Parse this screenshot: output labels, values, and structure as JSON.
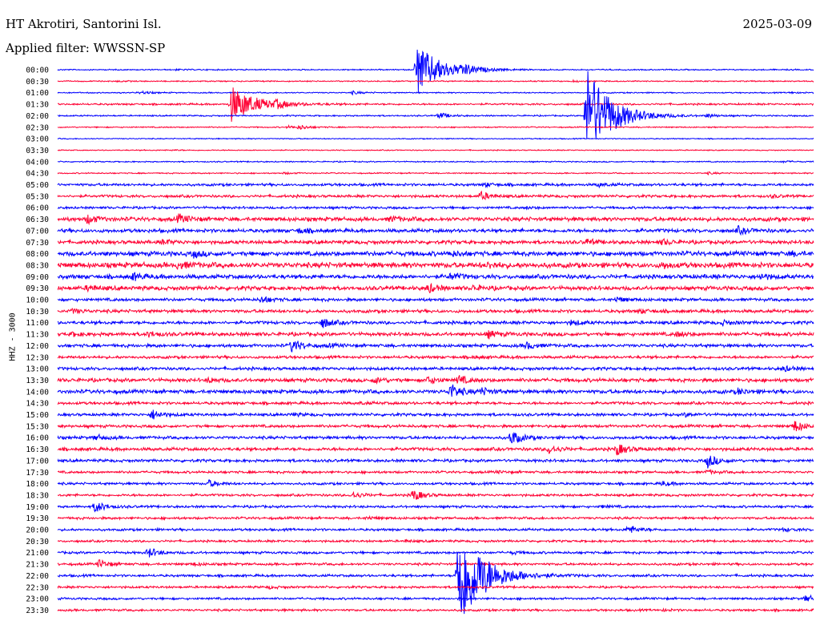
{
  "header": {
    "station": "HT Akrotiri, Santorini Isl.",
    "filter": "Applied filter: WWSSN-SP",
    "date": "2025-03-09"
  },
  "chart_data": {
    "type": "line",
    "title": "HT Akrotiri, Santorini Isl.",
    "subtitle": "Applied filter: WWSSN-SP",
    "ylabel": "HHZ - 3000",
    "xlabel": "",
    "date": "2025-03-09",
    "colors": [
      "#0000ff",
      "#ff0033"
    ],
    "rows": [
      {
        "label": "00:00",
        "events": [
          [
            0.158,
            0.6
          ],
          [
            0.475,
            32
          ],
          [
            0.536,
            5
          ]
        ],
        "noise": 0.6
      },
      {
        "label": "00:30",
        "events": [
          [
            0.08,
            0.6
          ],
          [
            0.682,
            0.8
          ]
        ],
        "noise": 0.6
      },
      {
        "label": "01:00",
        "events": [
          [
            0.11,
            1.8
          ],
          [
            0.39,
            1.8
          ],
          [
            0.97,
            0.8
          ]
        ],
        "noise": 0.6
      },
      {
        "label": "01:30",
        "events": [
          [
            0.23,
            22
          ],
          [
            0.29,
            3
          ]
        ],
        "noise": 0.9
      },
      {
        "label": "02:00",
        "events": [
          [
            0.7,
            60
          ],
          [
            0.505,
            3.5
          ],
          [
            0.86,
            2
          ]
        ],
        "noise": 0.7
      },
      {
        "label": "02:30",
        "events": [
          [
            0.305,
            1.5
          ],
          [
            0.32,
            2.5
          ]
        ],
        "noise": 0.6
      },
      {
        "label": "03:00",
        "events": [],
        "noise": 0.5
      },
      {
        "label": "03:30",
        "events": [
          [
            0.15,
            0.6
          ]
        ],
        "noise": 0.5
      },
      {
        "label": "04:00",
        "events": [
          [
            0.96,
            1
          ]
        ],
        "noise": 0.6
      },
      {
        "label": "04:30",
        "events": [
          [
            0.3,
            1
          ],
          [
            0.86,
            1.2
          ]
        ],
        "noise": 0.6
      },
      {
        "label": "05:00",
        "events": [
          [
            0.565,
            2.2
          ],
          [
            0.715,
            2
          ]
        ],
        "noise": 1.3
      },
      {
        "label": "05:30",
        "events": [
          [
            0.56,
            5
          ],
          [
            0.945,
            1.5
          ]
        ],
        "noise": 1.3
      },
      {
        "label": "06:00",
        "events": [
          [
            0.62,
            1
          ]
        ],
        "noise": 1.2
      },
      {
        "label": "06:30",
        "events": [
          [
            0.04,
            5
          ],
          [
            0.16,
            5
          ],
          [
            0.44,
            3
          ]
        ],
        "noise": 2
      },
      {
        "label": "07:00",
        "events": [
          [
            0.32,
            3
          ],
          [
            0.9,
            4
          ]
        ],
        "noise": 1.8
      },
      {
        "label": "07:30",
        "events": [
          [
            0.14,
            2.5
          ],
          [
            0.7,
            3
          ],
          [
            0.8,
            3
          ]
        ],
        "noise": 1.8
      },
      {
        "label": "08:00",
        "events": [
          [
            0.18,
            3.5
          ],
          [
            0.52,
            2.5
          ],
          [
            0.97,
            2
          ]
        ],
        "noise": 2.3
      },
      {
        "label": "08:30",
        "events": [
          [
            0.16,
            4
          ],
          [
            0.57,
            3
          ],
          [
            0.8,
            3
          ]
        ],
        "noise": 2.6
      },
      {
        "label": "09:00",
        "events": [
          [
            0.1,
            4
          ],
          [
            0.52,
            3.5
          ],
          [
            0.93,
            3
          ]
        ],
        "noise": 2.1
      },
      {
        "label": "09:30",
        "events": [
          [
            0.04,
            3
          ],
          [
            0.49,
            5
          ],
          [
            0.55,
            2.5
          ]
        ],
        "noise": 2
      },
      {
        "label": "10:00",
        "events": [
          [
            0.27,
            4
          ],
          [
            0.74,
            2.5
          ]
        ],
        "noise": 1.5
      },
      {
        "label": "10:30",
        "events": [
          [
            0.02,
            2.5
          ],
          [
            0.77,
            2.5
          ]
        ],
        "noise": 1.6
      },
      {
        "label": "11:00",
        "events": [
          [
            0.35,
            6
          ],
          [
            0.68,
            3
          ],
          [
            0.88,
            2.5
          ]
        ],
        "noise": 1.6
      },
      {
        "label": "11:30",
        "events": [
          [
            0.02,
            2
          ],
          [
            0.12,
            3
          ],
          [
            0.57,
            4
          ],
          [
            0.82,
            2.5
          ]
        ],
        "noise": 1.8
      },
      {
        "label": "12:00",
        "events": [
          [
            0.31,
            8
          ],
          [
            0.36,
            1.5
          ],
          [
            0.62,
            4
          ]
        ],
        "noise": 1.6
      },
      {
        "label": "12:30",
        "events": [
          [
            0.55,
            1.5
          ]
        ],
        "noise": 1.4
      },
      {
        "label": "13:00",
        "events": [
          [
            0.96,
            3
          ]
        ],
        "noise": 1.5
      },
      {
        "label": "13:30",
        "events": [
          [
            0.2,
            2.5
          ],
          [
            0.42,
            3
          ],
          [
            0.49,
            4
          ],
          [
            0.53,
            5
          ]
        ],
        "noise": 1.8
      },
      {
        "label": "14:00",
        "events": [
          [
            0.52,
            9
          ],
          [
            0.56,
            4
          ],
          [
            0.9,
            3
          ]
        ],
        "noise": 1.9
      },
      {
        "label": "14:30",
        "events": [
          [
            0.4,
            1
          ]
        ],
        "noise": 1.4
      },
      {
        "label": "15:00",
        "events": [
          [
            0.125,
            6
          ],
          [
            0.31,
            1.5
          ],
          [
            0.83,
            2
          ]
        ],
        "noise": 1.4
      },
      {
        "label": "15:30",
        "events": [
          [
            0.975,
            7
          ]
        ],
        "noise": 1.4
      },
      {
        "label": "16:00",
        "events": [
          [
            0.05,
            3
          ],
          [
            0.6,
            9
          ]
        ],
        "noise": 1.5
      },
      {
        "label": "16:30",
        "events": [
          [
            0.65,
            5
          ],
          [
            0.74,
            7
          ]
        ],
        "noise": 1.6
      },
      {
        "label": "17:00",
        "events": [
          [
            0.86,
            8
          ]
        ],
        "noise": 1.4
      },
      {
        "label": "17:30",
        "events": [
          [
            0.58,
            1
          ],
          [
            0.86,
            2
          ]
        ],
        "noise": 1.2
      },
      {
        "label": "18:00",
        "events": [
          [
            0.2,
            4
          ],
          [
            0.8,
            2.5
          ]
        ],
        "noise": 1.2
      },
      {
        "label": "18:30",
        "events": [
          [
            0.39,
            4
          ],
          [
            0.47,
            7
          ]
        ],
        "noise": 1.2
      },
      {
        "label": "19:00",
        "events": [
          [
            0.05,
            7
          ],
          [
            0.72,
            1.5
          ]
        ],
        "noise": 1.2
      },
      {
        "label": "19:30",
        "events": [
          [
            0.41,
            1.5
          ]
        ],
        "noise": 1.2
      },
      {
        "label": "20:00",
        "events": [
          [
            0.755,
            5
          ],
          [
            0.96,
            2
          ]
        ],
        "noise": 1.2
      },
      {
        "label": "20:30",
        "events": [
          [
            0.46,
            1.2
          ]
        ],
        "noise": 1.1
      },
      {
        "label": "21:00",
        "events": [
          [
            0.12,
            6
          ],
          [
            0.6,
            1.5
          ]
        ],
        "noise": 1.2
      },
      {
        "label": "21:30",
        "events": [
          [
            0.055,
            5
          ],
          [
            0.18,
            1.5
          ]
        ],
        "noise": 1.2
      },
      {
        "label": "22:00",
        "events": [
          [
            0.53,
            70
          ]
        ],
        "noise": 1.2
      },
      {
        "label": "22:30",
        "events": [
          [
            0.28,
            1.2
          ]
        ],
        "noise": 1.1
      },
      {
        "label": "23:00",
        "events": [
          [
            0.99,
            4
          ]
        ],
        "noise": 1.1
      },
      {
        "label": "23:30",
        "events": [
          [
            0.8,
            1
          ]
        ],
        "noise": 1.1
      }
    ]
  }
}
